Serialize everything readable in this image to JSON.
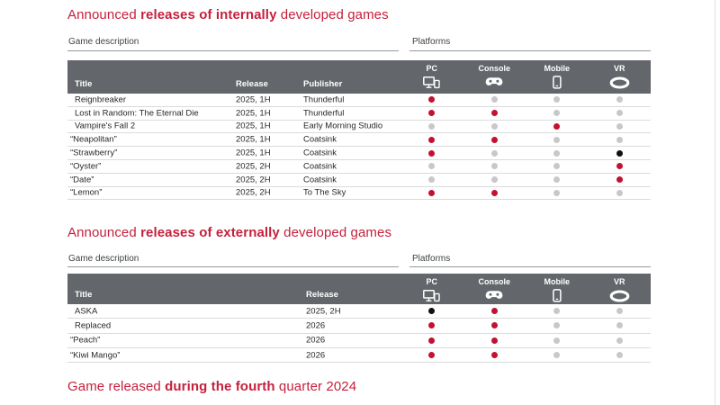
{
  "page": {
    "background": "#ffffff",
    "accent_red": "#c5203c",
    "header_bg": "#63666a",
    "dot_red": "#c11232",
    "dot_gray": "#c8c8c8",
    "dot_black": "#111111"
  },
  "sections": {
    "internal": {
      "title": {
        "pre": "Announced ",
        "bold": "releases of internally",
        "post": " developed games"
      },
      "group_labels": {
        "left": "Game description",
        "right": "Platforms"
      },
      "columns": {
        "title": "Title",
        "release": "Release",
        "publisher": "Publisher"
      },
      "platform_columns": [
        {
          "label": "PC",
          "icon": "pc-icon"
        },
        {
          "label": "Console",
          "icon": "console-icon"
        },
        {
          "label": "Mobile",
          "icon": "mobile-icon"
        },
        {
          "label": "VR",
          "icon": "vr-icon"
        }
      ],
      "rows": [
        {
          "title": "Reignbreaker",
          "release": "2025, 1H",
          "publisher": "Thunderful",
          "platforms": [
            "red",
            "gray",
            "gray",
            "gray"
          ]
        },
        {
          "title": "Lost in Random: The Eternal Die",
          "release": "2025, 1H",
          "publisher": "Thunderful",
          "platforms": [
            "red",
            "red",
            "gray",
            "gray"
          ]
        },
        {
          "title": "Vampire's Fall 2",
          "release": "2025, 1H",
          "publisher": "Early Morning Studio",
          "platforms": [
            "gray",
            "gray",
            "red",
            "gray"
          ]
        },
        {
          "title": "“Neapolitan”",
          "release": "2025, 1H",
          "publisher": "Coatsink",
          "platforms": [
            "red",
            "red",
            "gray",
            "gray"
          ]
        },
        {
          "title": "“Strawberry”",
          "release": "2025, 1H",
          "publisher": "Coatsink",
          "platforms": [
            "red",
            "gray",
            "gray",
            "black"
          ]
        },
        {
          "title": "“Oyster”",
          "release": "2025, 2H",
          "publisher": "Coatsink",
          "platforms": [
            "gray",
            "gray",
            "gray",
            "red"
          ]
        },
        {
          "title": "“Date”",
          "release": "2025, 2H",
          "publisher": "Coatsink",
          "platforms": [
            "gray",
            "gray",
            "gray",
            "red"
          ]
        },
        {
          "title": "“Lemon”",
          "release": "2025, 2H",
          "publisher": "To The Sky",
          "platforms": [
            "red",
            "red",
            "gray",
            "gray"
          ]
        }
      ]
    },
    "external": {
      "title": {
        "pre": "Announced ",
        "bold": "releases of externally",
        "post": " developed games"
      },
      "group_labels": {
        "left": "Game description",
        "right": "Platforms"
      },
      "columns": {
        "title": "Title",
        "release": "Release"
      },
      "platform_columns": [
        {
          "label": "PC",
          "icon": "pc-icon"
        },
        {
          "label": "Console",
          "icon": "console-icon"
        },
        {
          "label": "Mobile",
          "icon": "mobile-icon"
        },
        {
          "label": "VR",
          "icon": "vr-icon"
        }
      ],
      "rows": [
        {
          "title": "ASKA",
          "release": "2025, 2H",
          "platforms": [
            "black",
            "red",
            "gray",
            "gray"
          ]
        },
        {
          "title": "Replaced",
          "release": "2026",
          "platforms": [
            "red",
            "red",
            "gray",
            "gray"
          ]
        },
        {
          "title": "“Peach”",
          "release": "2026",
          "platforms": [
            "red",
            "red",
            "gray",
            "gray"
          ]
        },
        {
          "title": "“Kiwi Mango”",
          "release": "2026",
          "platforms": [
            "red",
            "red",
            "gray",
            "gray"
          ]
        }
      ]
    },
    "footer_title": {
      "pre": "Game released ",
      "bold": "during the fourth",
      "post": " quarter 2024"
    }
  }
}
